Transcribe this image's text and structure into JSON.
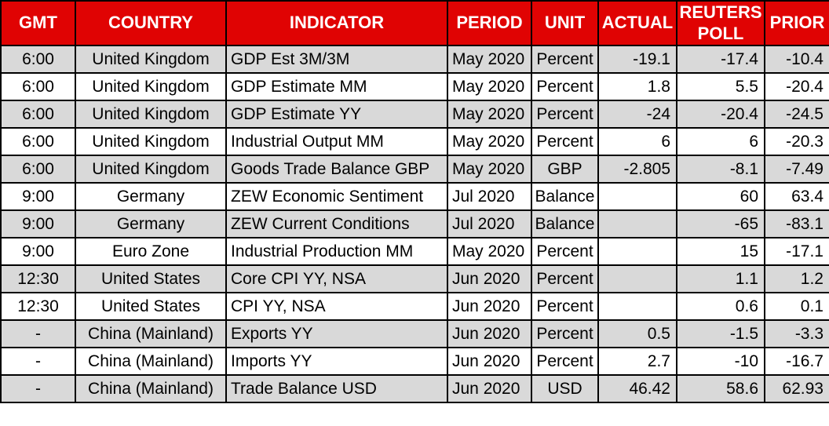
{
  "chart_data": {
    "type": "table",
    "columns": [
      {
        "key": "gmt",
        "label": "GMT"
      },
      {
        "key": "country",
        "label": "COUNTRY"
      },
      {
        "key": "indicator",
        "label": "INDICATOR"
      },
      {
        "key": "period",
        "label": "PERIOD"
      },
      {
        "key": "unit",
        "label": "UNIT"
      },
      {
        "key": "actual",
        "label": "ACTUAL"
      },
      {
        "key": "reuters-poll",
        "label": "REUTERS POLL"
      },
      {
        "key": "prior",
        "label": "PRIOR"
      }
    ],
    "rows": [
      [
        "6:00",
        "United Kingdom",
        "GDP Est 3M/3M",
        "May 2020",
        "Percent",
        "-19.1",
        "-17.4",
        "-10.4"
      ],
      [
        "6:00",
        "United Kingdom",
        "GDP Estimate MM",
        "May 2020",
        "Percent",
        "1.8",
        "5.5",
        "-20.4"
      ],
      [
        "6:00",
        "United Kingdom",
        "GDP Estimate YY",
        "May 2020",
        "Percent",
        "-24",
        "-20.4",
        "-24.5"
      ],
      [
        "6:00",
        "United Kingdom",
        "Industrial Output MM",
        "May 2020",
        "Percent",
        "6",
        "6",
        "-20.3"
      ],
      [
        "6:00",
        "United Kingdom",
        "Goods Trade Balance GBP",
        "May 2020",
        "GBP",
        "-2.805",
        "-8.1",
        "-7.49"
      ],
      [
        "9:00",
        "Germany",
        "ZEW Economic Sentiment",
        "Jul 2020",
        "Balance",
        "",
        "60",
        "63.4"
      ],
      [
        "9:00",
        "Germany",
        "ZEW Current Conditions",
        "Jul 2020",
        "Balance",
        "",
        "-65",
        "-83.1"
      ],
      [
        "9:00",
        "Euro Zone",
        "Industrial Production MM",
        "May 2020",
        "Percent",
        "",
        "15",
        "-17.1"
      ],
      [
        "12:30",
        "United States",
        "Core CPI YY, NSA",
        "Jun 2020",
        "Percent",
        "",
        "1.1",
        "1.2"
      ],
      [
        "12:30",
        "United States",
        "CPI YY, NSA",
        "Jun 2020",
        "Percent",
        "",
        "0.6",
        "0.1"
      ],
      [
        "-",
        "China (Mainland)",
        "Exports YY",
        "Jun 2020",
        "Percent",
        "0.5",
        "-1.5",
        "-3.3"
      ],
      [
        "-",
        "China (Mainland)",
        "Imports YY",
        "Jun 2020",
        "Percent",
        "2.7",
        "-10",
        "-16.7"
      ],
      [
        "-",
        "China (Mainland)",
        "Trade Balance USD",
        "Jun 2020",
        "USD",
        "46.42",
        "58.6",
        "62.93"
      ]
    ]
  },
  "colors": {
    "header_bg": "#e00303",
    "header_text": "#ffffff",
    "row_stripe_bg": "#d9d9d9",
    "row_bg": "#ffffff",
    "border": "#000000",
    "body_text": "#000000"
  }
}
